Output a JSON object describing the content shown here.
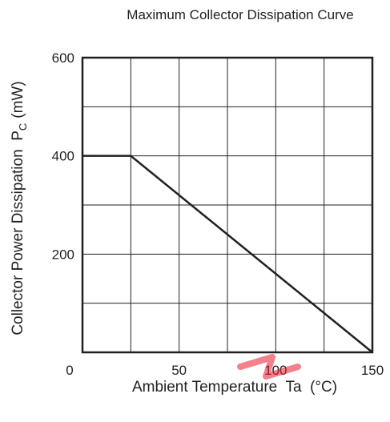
{
  "chart_data": {
    "type": "line",
    "title": "Maximum Collector Dissipation Curve",
    "xlabel": "Ambient Temperature  Ta  (°C)",
    "ylabel": "Collector Power Dissipation  P",
    "ylabel_sub": "C",
    "ylabel_unit": "(mW)",
    "x_ticks": [
      0,
      50,
      100,
      150
    ],
    "x_tick_labels": [
      "0",
      "50",
      "100",
      "150"
    ],
    "y_ticks": [
      200,
      400,
      600
    ],
    "y_tick_labels": [
      "200",
      "400",
      "600"
    ],
    "xlim": [
      0,
      150
    ],
    "ylim": [
      0,
      600
    ],
    "grid": true,
    "x_grid_step": 25,
    "y_grid_step": 100,
    "series": [
      {
        "x": [
          0,
          25,
          150
        ],
        "y": [
          400,
          400,
          0
        ]
      }
    ],
    "colors": {
      "ink": "#231f20",
      "grid": "#231f20",
      "watermark": "#e8192c"
    }
  }
}
